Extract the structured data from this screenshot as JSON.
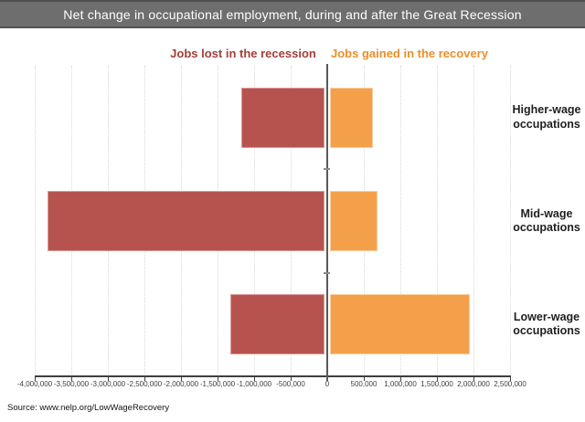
{
  "title": "Net change in occupational employment, during and after the Great Recession",
  "legend": {
    "lost_label": "Jobs lost in the recession",
    "gained_label": "Jobs gained in the recovery"
  },
  "source": "Source: www.nelp.org/LowWageRecovery",
  "colors": {
    "title_bar_bg": "#6e6e6e",
    "title_text": "#ffffff",
    "lost_header_text": "#a23e3a",
    "gained_header_text": "#ed8e26",
    "bar_lost_fill": "#b7534e",
    "bar_lost_border": "#d89a96",
    "bar_gained_fill": "#f4a04a",
    "bar_gained_border": "#f8cfa0",
    "gridline": "#d9d9d9",
    "axis_line": "#3f3f3f",
    "zero_line": "#595959",
    "category_label_text": "#1f1f1f"
  },
  "chart_data": {
    "type": "bar",
    "orientation": "horizontal",
    "title": "Net change in occupational employment, during and after the Great Recession",
    "categories": [
      "Higher-wage occupations",
      "Mid-wage occupations",
      "Lower-wage occupations"
    ],
    "series": [
      {
        "name": "Jobs lost in the recession",
        "color": "#b7534e",
        "values": [
          -1170000,
          -3820000,
          -1330000
        ]
      },
      {
        "name": "Jobs gained in the recovery",
        "color": "#f4a04a",
        "values": [
          620000,
          690000,
          1950000
        ]
      }
    ],
    "xlim": [
      -4000000,
      2500000
    ],
    "tick_interval": 500000,
    "tick_labels": [
      "-4,000,000",
      "-3,500,000",
      "-3,000,000",
      "-2,500,000",
      "-2,000,000",
      "-1,500,000",
      "-1,000,000",
      "-500,000",
      "0",
      "500,000",
      "1,000,000",
      "1,500,000",
      "2,000,000",
      "2,500,000"
    ],
    "grid": "dotted-vertical-every-tick",
    "legend_position": "above-plot",
    "values_estimated_from_gridlines": true
  }
}
